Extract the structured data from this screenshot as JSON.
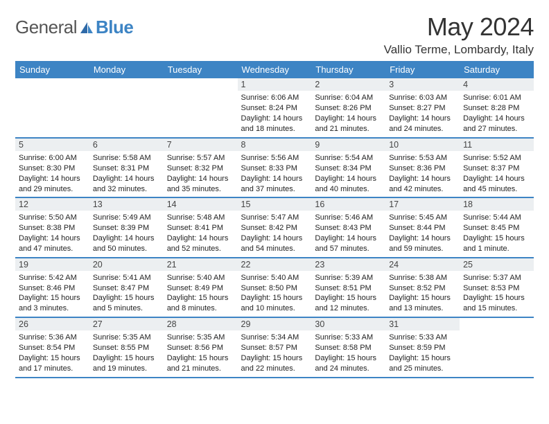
{
  "brand": {
    "part1": "General",
    "part2": "Blue"
  },
  "title": "May 2024",
  "location": "Vallio Terme, Lombardy, Italy",
  "colors": {
    "accent": "#3d84c4",
    "daynum_bg": "#eceff1"
  },
  "weekdays": [
    "Sunday",
    "Monday",
    "Tuesday",
    "Wednesday",
    "Thursday",
    "Friday",
    "Saturday"
  ],
  "weeks": [
    [
      null,
      null,
      null,
      {
        "n": "1",
        "sr": "Sunrise: 6:06 AM",
        "ss": "Sunset: 8:24 PM",
        "d1": "Daylight: 14 hours",
        "d2": "and 18 minutes."
      },
      {
        "n": "2",
        "sr": "Sunrise: 6:04 AM",
        "ss": "Sunset: 8:26 PM",
        "d1": "Daylight: 14 hours",
        "d2": "and 21 minutes."
      },
      {
        "n": "3",
        "sr": "Sunrise: 6:03 AM",
        "ss": "Sunset: 8:27 PM",
        "d1": "Daylight: 14 hours",
        "d2": "and 24 minutes."
      },
      {
        "n": "4",
        "sr": "Sunrise: 6:01 AM",
        "ss": "Sunset: 8:28 PM",
        "d1": "Daylight: 14 hours",
        "d2": "and 27 minutes."
      }
    ],
    [
      {
        "n": "5",
        "sr": "Sunrise: 6:00 AM",
        "ss": "Sunset: 8:30 PM",
        "d1": "Daylight: 14 hours",
        "d2": "and 29 minutes."
      },
      {
        "n": "6",
        "sr": "Sunrise: 5:58 AM",
        "ss": "Sunset: 8:31 PM",
        "d1": "Daylight: 14 hours",
        "d2": "and 32 minutes."
      },
      {
        "n": "7",
        "sr": "Sunrise: 5:57 AM",
        "ss": "Sunset: 8:32 PM",
        "d1": "Daylight: 14 hours",
        "d2": "and 35 minutes."
      },
      {
        "n": "8",
        "sr": "Sunrise: 5:56 AM",
        "ss": "Sunset: 8:33 PM",
        "d1": "Daylight: 14 hours",
        "d2": "and 37 minutes."
      },
      {
        "n": "9",
        "sr": "Sunrise: 5:54 AM",
        "ss": "Sunset: 8:34 PM",
        "d1": "Daylight: 14 hours",
        "d2": "and 40 minutes."
      },
      {
        "n": "10",
        "sr": "Sunrise: 5:53 AM",
        "ss": "Sunset: 8:36 PM",
        "d1": "Daylight: 14 hours",
        "d2": "and 42 minutes."
      },
      {
        "n": "11",
        "sr": "Sunrise: 5:52 AM",
        "ss": "Sunset: 8:37 PM",
        "d1": "Daylight: 14 hours",
        "d2": "and 45 minutes."
      }
    ],
    [
      {
        "n": "12",
        "sr": "Sunrise: 5:50 AM",
        "ss": "Sunset: 8:38 PM",
        "d1": "Daylight: 14 hours",
        "d2": "and 47 minutes."
      },
      {
        "n": "13",
        "sr": "Sunrise: 5:49 AM",
        "ss": "Sunset: 8:39 PM",
        "d1": "Daylight: 14 hours",
        "d2": "and 50 minutes."
      },
      {
        "n": "14",
        "sr": "Sunrise: 5:48 AM",
        "ss": "Sunset: 8:41 PM",
        "d1": "Daylight: 14 hours",
        "d2": "and 52 minutes."
      },
      {
        "n": "15",
        "sr": "Sunrise: 5:47 AM",
        "ss": "Sunset: 8:42 PM",
        "d1": "Daylight: 14 hours",
        "d2": "and 54 minutes."
      },
      {
        "n": "16",
        "sr": "Sunrise: 5:46 AM",
        "ss": "Sunset: 8:43 PM",
        "d1": "Daylight: 14 hours",
        "d2": "and 57 minutes."
      },
      {
        "n": "17",
        "sr": "Sunrise: 5:45 AM",
        "ss": "Sunset: 8:44 PM",
        "d1": "Daylight: 14 hours",
        "d2": "and 59 minutes."
      },
      {
        "n": "18",
        "sr": "Sunrise: 5:44 AM",
        "ss": "Sunset: 8:45 PM",
        "d1": "Daylight: 15 hours",
        "d2": "and 1 minute."
      }
    ],
    [
      {
        "n": "19",
        "sr": "Sunrise: 5:42 AM",
        "ss": "Sunset: 8:46 PM",
        "d1": "Daylight: 15 hours",
        "d2": "and 3 minutes."
      },
      {
        "n": "20",
        "sr": "Sunrise: 5:41 AM",
        "ss": "Sunset: 8:47 PM",
        "d1": "Daylight: 15 hours",
        "d2": "and 5 minutes."
      },
      {
        "n": "21",
        "sr": "Sunrise: 5:40 AM",
        "ss": "Sunset: 8:49 PM",
        "d1": "Daylight: 15 hours",
        "d2": "and 8 minutes."
      },
      {
        "n": "22",
        "sr": "Sunrise: 5:40 AM",
        "ss": "Sunset: 8:50 PM",
        "d1": "Daylight: 15 hours",
        "d2": "and 10 minutes."
      },
      {
        "n": "23",
        "sr": "Sunrise: 5:39 AM",
        "ss": "Sunset: 8:51 PM",
        "d1": "Daylight: 15 hours",
        "d2": "and 12 minutes."
      },
      {
        "n": "24",
        "sr": "Sunrise: 5:38 AM",
        "ss": "Sunset: 8:52 PM",
        "d1": "Daylight: 15 hours",
        "d2": "and 13 minutes."
      },
      {
        "n": "25",
        "sr": "Sunrise: 5:37 AM",
        "ss": "Sunset: 8:53 PM",
        "d1": "Daylight: 15 hours",
        "d2": "and 15 minutes."
      }
    ],
    [
      {
        "n": "26",
        "sr": "Sunrise: 5:36 AM",
        "ss": "Sunset: 8:54 PM",
        "d1": "Daylight: 15 hours",
        "d2": "and 17 minutes."
      },
      {
        "n": "27",
        "sr": "Sunrise: 5:35 AM",
        "ss": "Sunset: 8:55 PM",
        "d1": "Daylight: 15 hours",
        "d2": "and 19 minutes."
      },
      {
        "n": "28",
        "sr": "Sunrise: 5:35 AM",
        "ss": "Sunset: 8:56 PM",
        "d1": "Daylight: 15 hours",
        "d2": "and 21 minutes."
      },
      {
        "n": "29",
        "sr": "Sunrise: 5:34 AM",
        "ss": "Sunset: 8:57 PM",
        "d1": "Daylight: 15 hours",
        "d2": "and 22 minutes."
      },
      {
        "n": "30",
        "sr": "Sunrise: 5:33 AM",
        "ss": "Sunset: 8:58 PM",
        "d1": "Daylight: 15 hours",
        "d2": "and 24 minutes."
      },
      {
        "n": "31",
        "sr": "Sunrise: 5:33 AM",
        "ss": "Sunset: 8:59 PM",
        "d1": "Daylight: 15 hours",
        "d2": "and 25 minutes."
      },
      null
    ]
  ]
}
